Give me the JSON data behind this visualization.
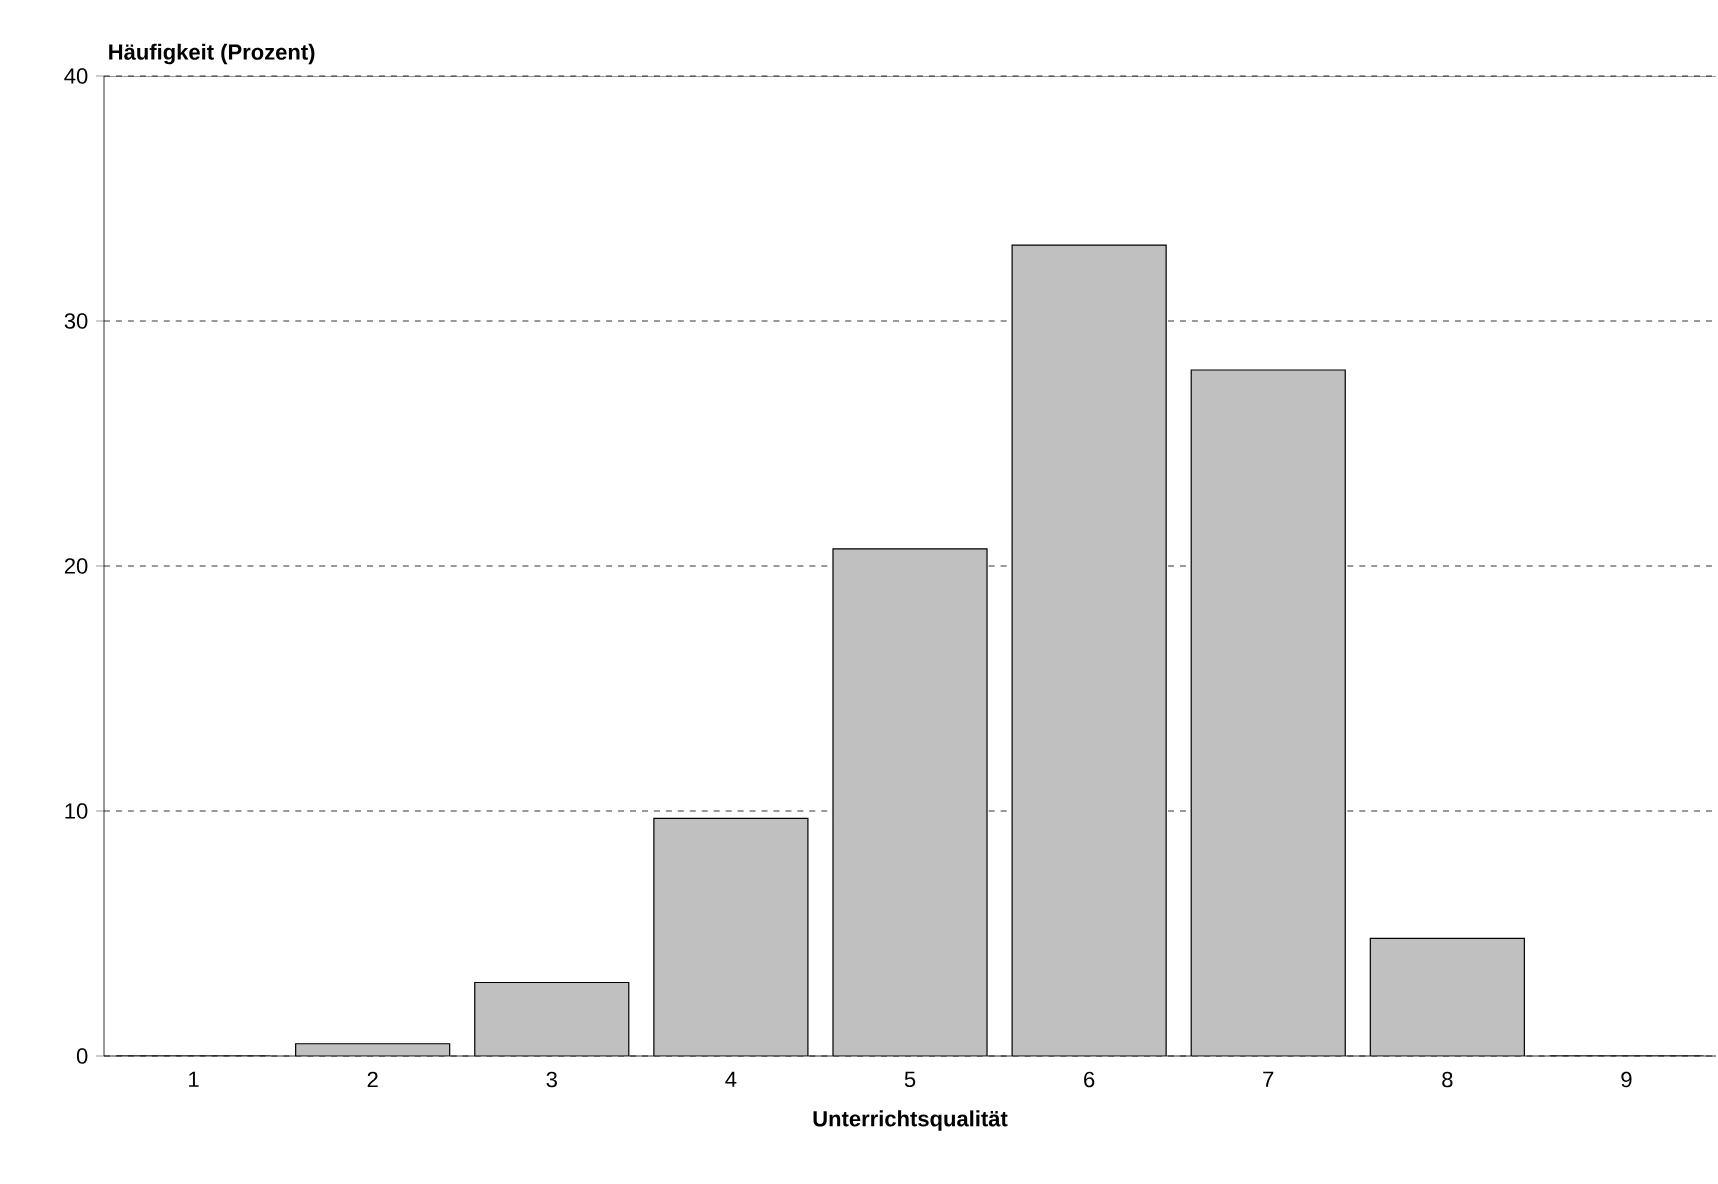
{
  "chart_data": {
    "type": "bar",
    "xlabel": "Unterrichtsqualität",
    "ylabel": "Häufigkeit (Prozent)",
    "categories": [
      "1",
      "2",
      "3",
      "4",
      "5",
      "6",
      "7",
      "8",
      "9"
    ],
    "values": [
      0,
      0.5,
      3.0,
      9.7,
      20.7,
      33.1,
      28.0,
      4.8,
      0
    ],
    "color": "#c0c0c0",
    "ylim": [
      0,
      40
    ],
    "yticks": [
      0,
      10,
      20,
      30,
      40
    ],
    "grid": "y"
  }
}
